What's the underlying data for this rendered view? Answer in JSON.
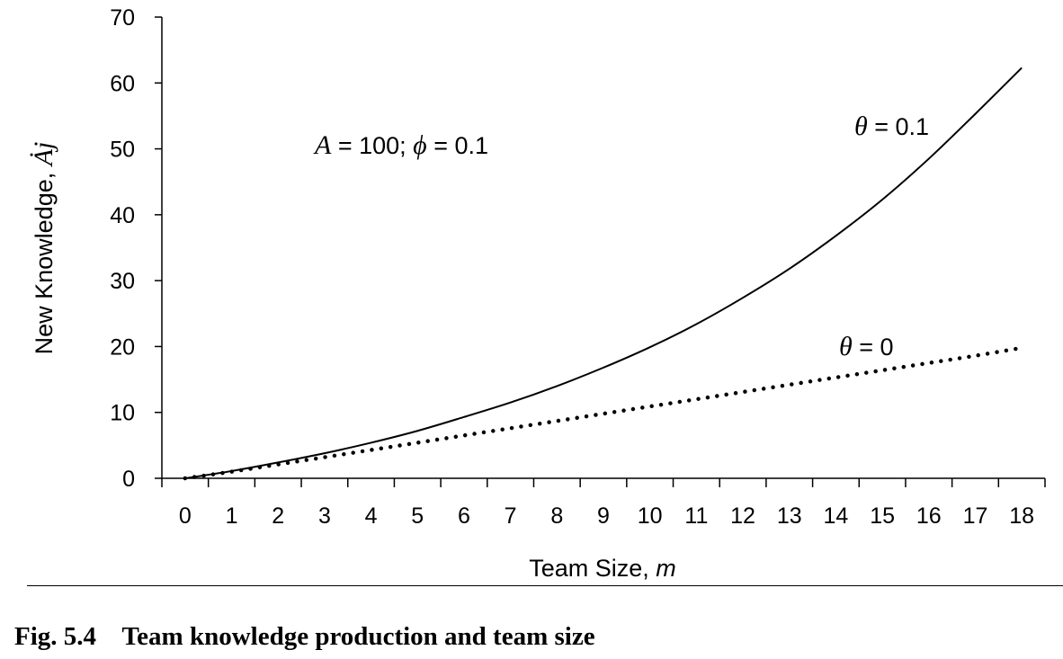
{
  "chart_data": {
    "type": "line",
    "x": [
      0,
      1,
      2,
      3,
      4,
      5,
      6,
      7,
      8,
      9,
      10,
      11,
      12,
      13,
      14,
      15,
      16,
      17,
      18
    ],
    "xlabel": "Team Size, m",
    "ylabel": "New Knowledge, Ȧj",
    "xlim": [
      -0.5,
      18.5
    ],
    "ylim": [
      0,
      70
    ],
    "y_ticks": [
      0,
      10,
      20,
      30,
      40,
      50,
      60,
      70
    ],
    "grid": false,
    "parameter_annotation": "A = 100; ϕ = 0.1",
    "series": [
      {
        "name": "θ = 0.1",
        "style": "solid",
        "values": [
          0,
          1.1,
          2.4,
          3.8,
          5.4,
          7.2,
          9.3,
          11.5,
          14.0,
          16.8,
          19.9,
          23.4,
          27.4,
          31.8,
          36.8,
          42.3,
          48.5,
          55.3,
          62.3
        ]
      },
      {
        "name": "θ = 0",
        "style": "dotted",
        "values": [
          0,
          1.0,
          2.1,
          3.2,
          4.3,
          5.4,
          6.5,
          7.6,
          8.7,
          9.8,
          10.9,
          12.0,
          13.1,
          14.2,
          15.3,
          16.4,
          17.5,
          18.6,
          19.8
        ]
      }
    ]
  },
  "labels": {
    "xlabel_text": "Team Size, ",
    "xlabel_var": "m",
    "ylabel_text": "New Knowledge, ",
    "ylabel_var": "Ȧj",
    "param_A": "A",
    "param_A_rest": " = 100; ",
    "param_phi": "ϕ",
    "param_phi_rest": " = 0.1",
    "theta_sym": "θ",
    "theta01_rest": " = 0.1",
    "theta0_rest": " = 0"
  },
  "caption": "Fig. 5.4    Team knowledge production and team size"
}
